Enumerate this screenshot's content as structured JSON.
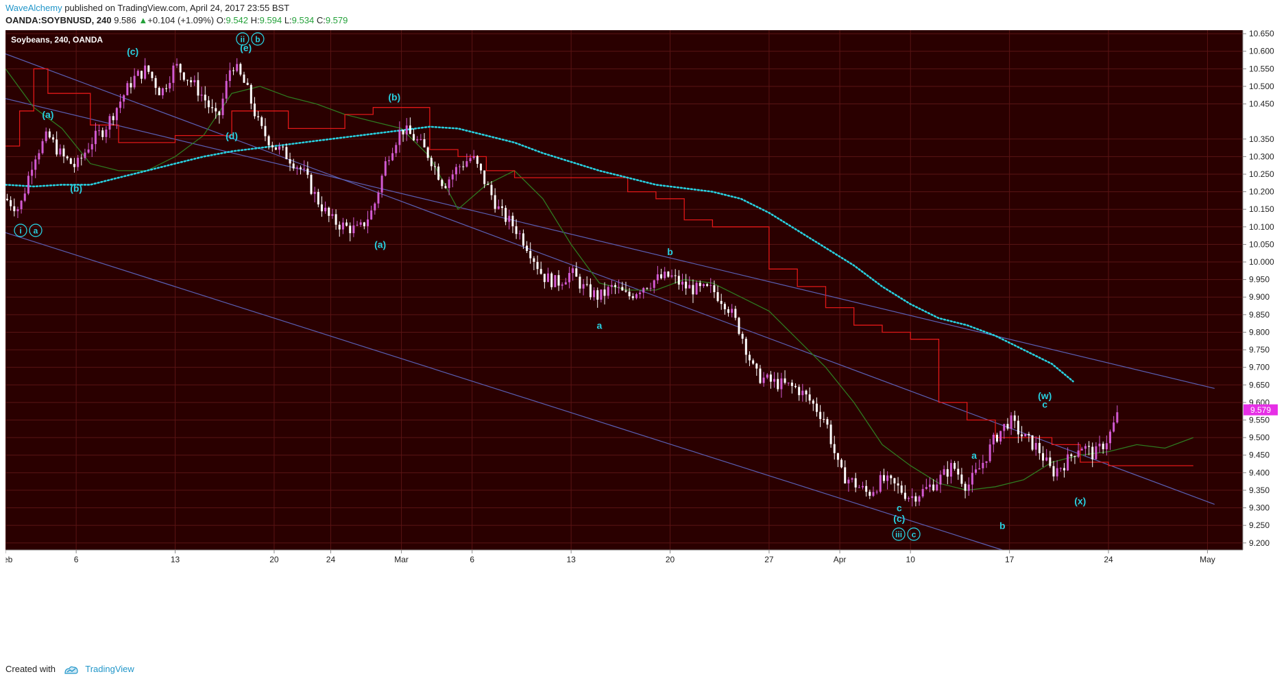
{
  "header": {
    "author": "WaveAlchemy",
    "published_text": "published on TradingView.com, April 24, 2017 23:55 BST",
    "symbol": "OANDA:SOYBNUSD, 240",
    "last": "9.586",
    "change": "+0.104 (+1.09%)",
    "o_label": "O:",
    "o_value": "9.542",
    "h_label": "H:",
    "h_value": "9.594",
    "l_label": "L:",
    "l_value": "9.534",
    "c_label": "C:",
    "c_value": "9.579"
  },
  "footer": {
    "created_with": "Created with",
    "brand": "TradingView"
  },
  "colors": {
    "background": "#2a0000",
    "grid": "#5a1414",
    "channel": "#5a5fb4",
    "ma": "#28d0e0",
    "kijun": "#e01818",
    "chikou": "#2e7a20",
    "candle": "#d25ad2",
    "candle_down": "#ffffff",
    "label": "#28d0e0",
    "price_badge": "#e62fe6"
  },
  "chart_data": {
    "type": "candlestick",
    "title": "Soybeans, 240, OANDA",
    "ylim": [
      9.18,
      10.66
    ],
    "yticks": [
      9.2,
      9.25,
      9.3,
      9.35,
      9.4,
      9.45,
      9.5,
      9.55,
      9.6,
      9.65,
      9.7,
      9.75,
      9.8,
      9.85,
      9.9,
      9.95,
      10.0,
      10.05,
      10.1,
      10.15,
      10.2,
      10.25,
      10.3,
      10.35,
      10.45,
      10.5,
      10.55,
      10.6,
      10.65
    ],
    "ytick_labels": [
      "9.200",
      "9.250",
      "9.300",
      "9.350",
      "9.400",
      "9.450",
      "9.500",
      "9.550",
      "9.600",
      "9.650",
      "9.700",
      "9.750",
      "9.800",
      "9.850",
      "9.900",
      "9.950",
      "10.000",
      "10.050",
      "10.100",
      "10.150",
      "10.200",
      "10.250",
      "10.300",
      "10.350",
      "10.450",
      "10.500",
      "10.550",
      "10.600",
      "10.650"
    ],
    "xlim": [
      0,
      87.5
    ],
    "xticks": [
      {
        "x": 0,
        "label": "Feb"
      },
      {
        "x": 5,
        "label": "6"
      },
      {
        "x": 12,
        "label": "13"
      },
      {
        "x": 19,
        "label": "20"
      },
      {
        "x": 23,
        "label": "24"
      },
      {
        "x": 28,
        "label": "Mar"
      },
      {
        "x": 33,
        "label": "6"
      },
      {
        "x": 40,
        "label": "13"
      },
      {
        "x": 47,
        "label": "20"
      },
      {
        "x": 54,
        "label": "27"
      },
      {
        "x": 59,
        "label": "Apr"
      },
      {
        "x": 64,
        "label": "10"
      },
      {
        "x": 71,
        "label": "17"
      },
      {
        "x": 78,
        "label": "24"
      },
      {
        "x": 85,
        "label": "May"
      }
    ],
    "x_unit": "trading-day index from Feb 1, 2017",
    "last_price": "9.579",
    "last_value": 9.579,
    "close_path": [
      [
        0,
        10.18
      ],
      [
        1,
        10.15
      ],
      [
        2,
        10.3
      ],
      [
        3,
        10.36
      ],
      [
        4,
        10.3
      ],
      [
        5,
        10.27
      ],
      [
        6,
        10.34
      ],
      [
        7,
        10.38
      ],
      [
        8,
        10.45
      ],
      [
        9,
        10.52
      ],
      [
        10,
        10.55
      ],
      [
        11,
        10.48
      ],
      [
        12,
        10.56
      ],
      [
        13,
        10.52
      ],
      [
        14,
        10.47
      ],
      [
        15,
        10.4
      ],
      [
        16,
        10.57
      ],
      [
        17,
        10.5
      ],
      [
        18,
        10.38
      ],
      [
        19,
        10.33
      ],
      [
        20,
        10.3
      ],
      [
        21,
        10.26
      ],
      [
        22,
        10.18
      ],
      [
        23,
        10.12
      ],
      [
        24,
        10.1
      ],
      [
        25,
        10.09
      ],
      [
        26,
        10.15
      ],
      [
        27,
        10.3
      ],
      [
        28,
        10.38
      ],
      [
        29,
        10.35
      ],
      [
        30,
        10.3
      ],
      [
        31,
        10.22
      ],
      [
        32,
        10.27
      ],
      [
        33,
        10.3
      ],
      [
        34,
        10.22
      ],
      [
        35,
        10.14
      ],
      [
        36,
        10.1
      ],
      [
        37,
        10.04
      ],
      [
        38,
        9.96
      ],
      [
        39,
        9.94
      ],
      [
        40,
        9.97
      ],
      [
        41,
        9.92
      ],
      [
        42,
        9.9
      ],
      [
        43,
        9.93
      ],
      [
        44,
        9.9
      ],
      [
        45,
        9.93
      ],
      [
        46,
        9.95
      ],
      [
        47,
        9.96
      ],
      [
        48,
        9.93
      ],
      [
        49,
        9.92
      ],
      [
        50,
        9.92
      ],
      [
        51,
        9.88
      ],
      [
        52,
        9.8
      ],
      [
        53,
        9.68
      ],
      [
        54,
        9.66
      ],
      [
        55,
        9.65
      ],
      [
        56,
        9.64
      ],
      [
        57,
        9.6
      ],
      [
        58,
        9.55
      ],
      [
        59,
        9.4
      ],
      [
        60,
        9.37
      ],
      [
        61,
        9.34
      ],
      [
        62,
        9.38
      ],
      [
        63,
        9.36
      ],
      [
        64,
        9.33
      ],
      [
        65,
        9.35
      ],
      [
        66,
        9.38
      ],
      [
        67,
        9.42
      ],
      [
        68,
        9.36
      ],
      [
        69,
        9.42
      ],
      [
        70,
        9.5
      ],
      [
        71,
        9.55
      ],
      [
        72,
        9.5
      ],
      [
        73,
        9.47
      ],
      [
        74,
        9.4
      ],
      [
        75,
        9.43
      ],
      [
        76,
        9.48
      ],
      [
        77,
        9.45
      ],
      [
        78,
        9.5
      ],
      [
        78.8,
        9.579
      ]
    ],
    "moving_average": [
      [
        0,
        10.22
      ],
      [
        2,
        10.215
      ],
      [
        4,
        10.22
      ],
      [
        6,
        10.22
      ],
      [
        8,
        10.24
      ],
      [
        10,
        10.26
      ],
      [
        12,
        10.28
      ],
      [
        14,
        10.3
      ],
      [
        16,
        10.315
      ],
      [
        18,
        10.325
      ],
      [
        20,
        10.335
      ],
      [
        22,
        10.345
      ],
      [
        24,
        10.355
      ],
      [
        26,
        10.365
      ],
      [
        28,
        10.375
      ],
      [
        30,
        10.385
      ],
      [
        32,
        10.38
      ],
      [
        34,
        10.36
      ],
      [
        36,
        10.34
      ],
      [
        38,
        10.31
      ],
      [
        40,
        10.285
      ],
      [
        42,
        10.26
      ],
      [
        44,
        10.24
      ],
      [
        46,
        10.22
      ],
      [
        48,
        10.21
      ],
      [
        50,
        10.2
      ],
      [
        52,
        10.18
      ],
      [
        54,
        10.14
      ],
      [
        56,
        10.09
      ],
      [
        58,
        10.04
      ],
      [
        60,
        9.99
      ],
      [
        62,
        9.93
      ],
      [
        64,
        9.88
      ],
      [
        66,
        9.84
      ],
      [
        68,
        9.82
      ],
      [
        70,
        9.79
      ],
      [
        72,
        9.75
      ],
      [
        74,
        9.71
      ],
      [
        75.5,
        9.66
      ]
    ],
    "kijun": [
      [
        0,
        10.33
      ],
      [
        1,
        10.43
      ],
      [
        2,
        10.55
      ],
      [
        3,
        10.48
      ],
      [
        5,
        10.48
      ],
      [
        6,
        10.39
      ],
      [
        8,
        10.34
      ],
      [
        10,
        10.34
      ],
      [
        12,
        10.36
      ],
      [
        14,
        10.36
      ],
      [
        16,
        10.43
      ],
      [
        18,
        10.43
      ],
      [
        20,
        10.38
      ],
      [
        22,
        10.38
      ],
      [
        24,
        10.42
      ],
      [
        26,
        10.44
      ],
      [
        28,
        10.44
      ],
      [
        30,
        10.32
      ],
      [
        32,
        10.3
      ],
      [
        34,
        10.26
      ],
      [
        36,
        10.24
      ],
      [
        38,
        10.24
      ],
      [
        40,
        10.24
      ],
      [
        42,
        10.24
      ],
      [
        44,
        10.2
      ],
      [
        46,
        10.18
      ],
      [
        48,
        10.12
      ],
      [
        50,
        10.1
      ],
      [
        52,
        10.1
      ],
      [
        54,
        9.98
      ],
      [
        56,
        9.93
      ],
      [
        58,
        9.87
      ],
      [
        60,
        9.82
      ],
      [
        62,
        9.8
      ],
      [
        64,
        9.78
      ],
      [
        66,
        9.6
      ],
      [
        68,
        9.55
      ],
      [
        70,
        9.5
      ],
      [
        72,
        9.5
      ],
      [
        74,
        9.48
      ],
      [
        76,
        9.43
      ],
      [
        78,
        9.42
      ],
      [
        80,
        9.42
      ],
      [
        82,
        9.42
      ],
      [
        84,
        9.42
      ]
    ],
    "chikou": [
      [
        0,
        10.55
      ],
      [
        2,
        10.44
      ],
      [
        4,
        10.38
      ],
      [
        6,
        10.28
      ],
      [
        8,
        10.26
      ],
      [
        10,
        10.26
      ],
      [
        12,
        10.3
      ],
      [
        14,
        10.36
      ],
      [
        16,
        10.48
      ],
      [
        18,
        10.5
      ],
      [
        20,
        10.47
      ],
      [
        22,
        10.45
      ],
      [
        24,
        10.42
      ],
      [
        26,
        10.4
      ],
      [
        28,
        10.38
      ],
      [
        30,
        10.3
      ],
      [
        32,
        10.15
      ],
      [
        34,
        10.22
      ],
      [
        36,
        10.26
      ],
      [
        38,
        10.18
      ],
      [
        40,
        10.05
      ],
      [
        42,
        9.94
      ],
      [
        44,
        9.92
      ],
      [
        46,
        9.92
      ],
      [
        48,
        9.95
      ],
      [
        50,
        9.94
      ],
      [
        52,
        9.9
      ],
      [
        54,
        9.86
      ],
      [
        56,
        9.78
      ],
      [
        58,
        9.7
      ],
      [
        60,
        9.6
      ],
      [
        62,
        9.48
      ],
      [
        64,
        9.42
      ],
      [
        66,
        9.37
      ],
      [
        68,
        9.35
      ],
      [
        70,
        9.36
      ],
      [
        72,
        9.38
      ],
      [
        74,
        9.43
      ],
      [
        76,
        9.45
      ],
      [
        78,
        9.46
      ],
      [
        80,
        9.48
      ],
      [
        82,
        9.47
      ],
      [
        84,
        9.5
      ]
    ],
    "channels": [
      [
        [
          -0.5,
          10.47
        ],
        [
          85.5,
          9.64
        ]
      ],
      [
        [
          -0.5,
          10.6
        ],
        [
          85.5,
          9.31
        ]
      ],
      [
        [
          -0.5,
          10.09
        ],
        [
          70.5,
          9.18
        ]
      ]
    ],
    "annotations": [
      {
        "text": "(c)",
        "x": 9,
        "y": 10.59
      },
      {
        "text": "(a)",
        "x": 3,
        "y": 10.41
      },
      {
        "text": "(b)",
        "x": 5,
        "y": 10.2
      },
      {
        "text": "(d)",
        "x": 16,
        "y": 10.35
      },
      {
        "text": "(e)",
        "x": 17,
        "y": 10.6
      },
      {
        "text": "(b)",
        "x": 27.5,
        "y": 10.46
      },
      {
        "text": "(a)",
        "x": 26.5,
        "y": 10.04
      },
      {
        "text": "a",
        "x": 42,
        "y": 9.81
      },
      {
        "text": "b",
        "x": 47,
        "y": 10.02
      },
      {
        "text": "c",
        "x": 63.2,
        "y": 9.29
      },
      {
        "text": "(c)",
        "x": 63.2,
        "y": 9.26
      },
      {
        "text": "a",
        "x": 68.5,
        "y": 9.44
      },
      {
        "text": "b",
        "x": 70.5,
        "y": 9.24
      },
      {
        "text": "(w)",
        "x": 73.5,
        "y": 9.61
      },
      {
        "text": "c",
        "x": 73.5,
        "y": 9.585
      },
      {
        "text": "(x)",
        "x": 76,
        "y": 9.31
      }
    ],
    "circled_annotations": [
      {
        "x": 1.6,
        "y": 10.09,
        "marks": [
          "i",
          "a"
        ]
      },
      {
        "x": 17.3,
        "y": 10.635,
        "marks": [
          "ii",
          "b"
        ]
      },
      {
        "x": 63.7,
        "y": 9.225,
        "marks": [
          "iii",
          "c"
        ]
      }
    ]
  }
}
